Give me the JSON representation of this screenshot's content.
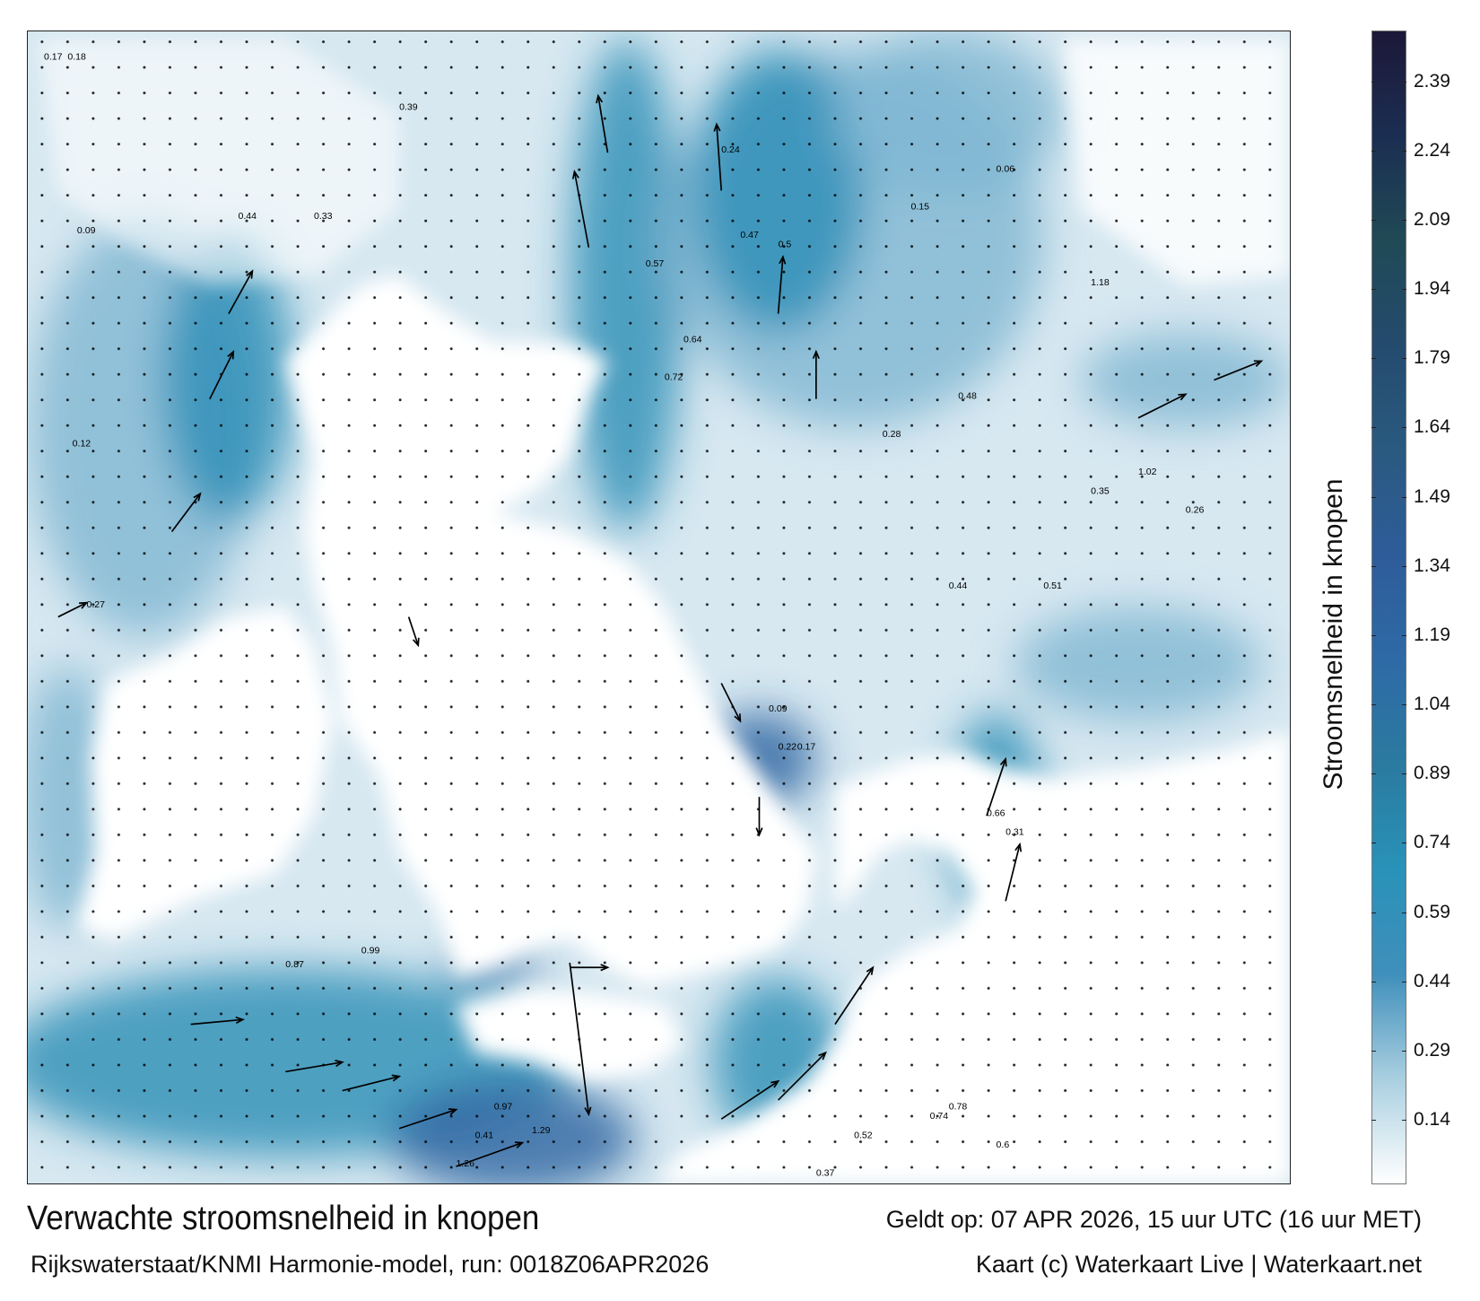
{
  "map": {
    "colors": {
      "sea_light": "#d7e8f1",
      "sea_mid": "#7fb6d2",
      "sea_blue": "#2a8db5",
      "sea_deep": "#2d64a0",
      "land": "#ffffff",
      "arrow": "#000000"
    },
    "sample_labels": [
      "0.17",
      "0.18",
      "0.09",
      "0.12",
      "0.27",
      "0.44",
      "0.33",
      "0.39",
      "0.24",
      "0.47",
      "0.5",
      "0.57",
      "0.64",
      "0.72",
      "0.66",
      "0.31",
      "0.22",
      "0.09",
      "0.17",
      "0.37",
      "0.52",
      "0.41",
      "0.6",
      "0.74",
      "0.78",
      "0.97",
      "1.29",
      "0.87",
      "0.99",
      "1.26",
      "1.18",
      "1.02",
      "0.51",
      "0.44",
      "0.28",
      "0.15",
      "0.06",
      "0.26",
      "0.35",
      "0.48"
    ]
  },
  "colorbar": {
    "label": "Stroomsnelheid in knopen",
    "ticks": [
      "2.39",
      "2.24",
      "2.09",
      "1.94",
      "1.79",
      "1.64",
      "1.49",
      "1.34",
      "1.19",
      "1.04",
      "0.89",
      "0.74",
      "0.59",
      "0.44",
      "0.29",
      "0.14"
    ],
    "range": [
      0,
      2.5
    ],
    "colors": [
      "#ffffff",
      "#a9cfe0",
      "#3f8fbb",
      "#2992b8",
      "#2b7aa0",
      "#2e6aa6",
      "#2e5c99",
      "#2a5a80",
      "#244b6e",
      "#204a55",
      "#1b2e52",
      "#1c1838"
    ]
  },
  "footer": {
    "title": "Verwachte stroomsnelheid in knopen",
    "valid": "Geldt op: 07 APR 2026, 15 uur UTC (16 uur MET)",
    "source": "Rijkswaterstaat/KNMI Harmonie-model, run: 0018Z06APR2026",
    "credit": "Kaart (c) Waterkaart Live | Waterkaart.net"
  }
}
